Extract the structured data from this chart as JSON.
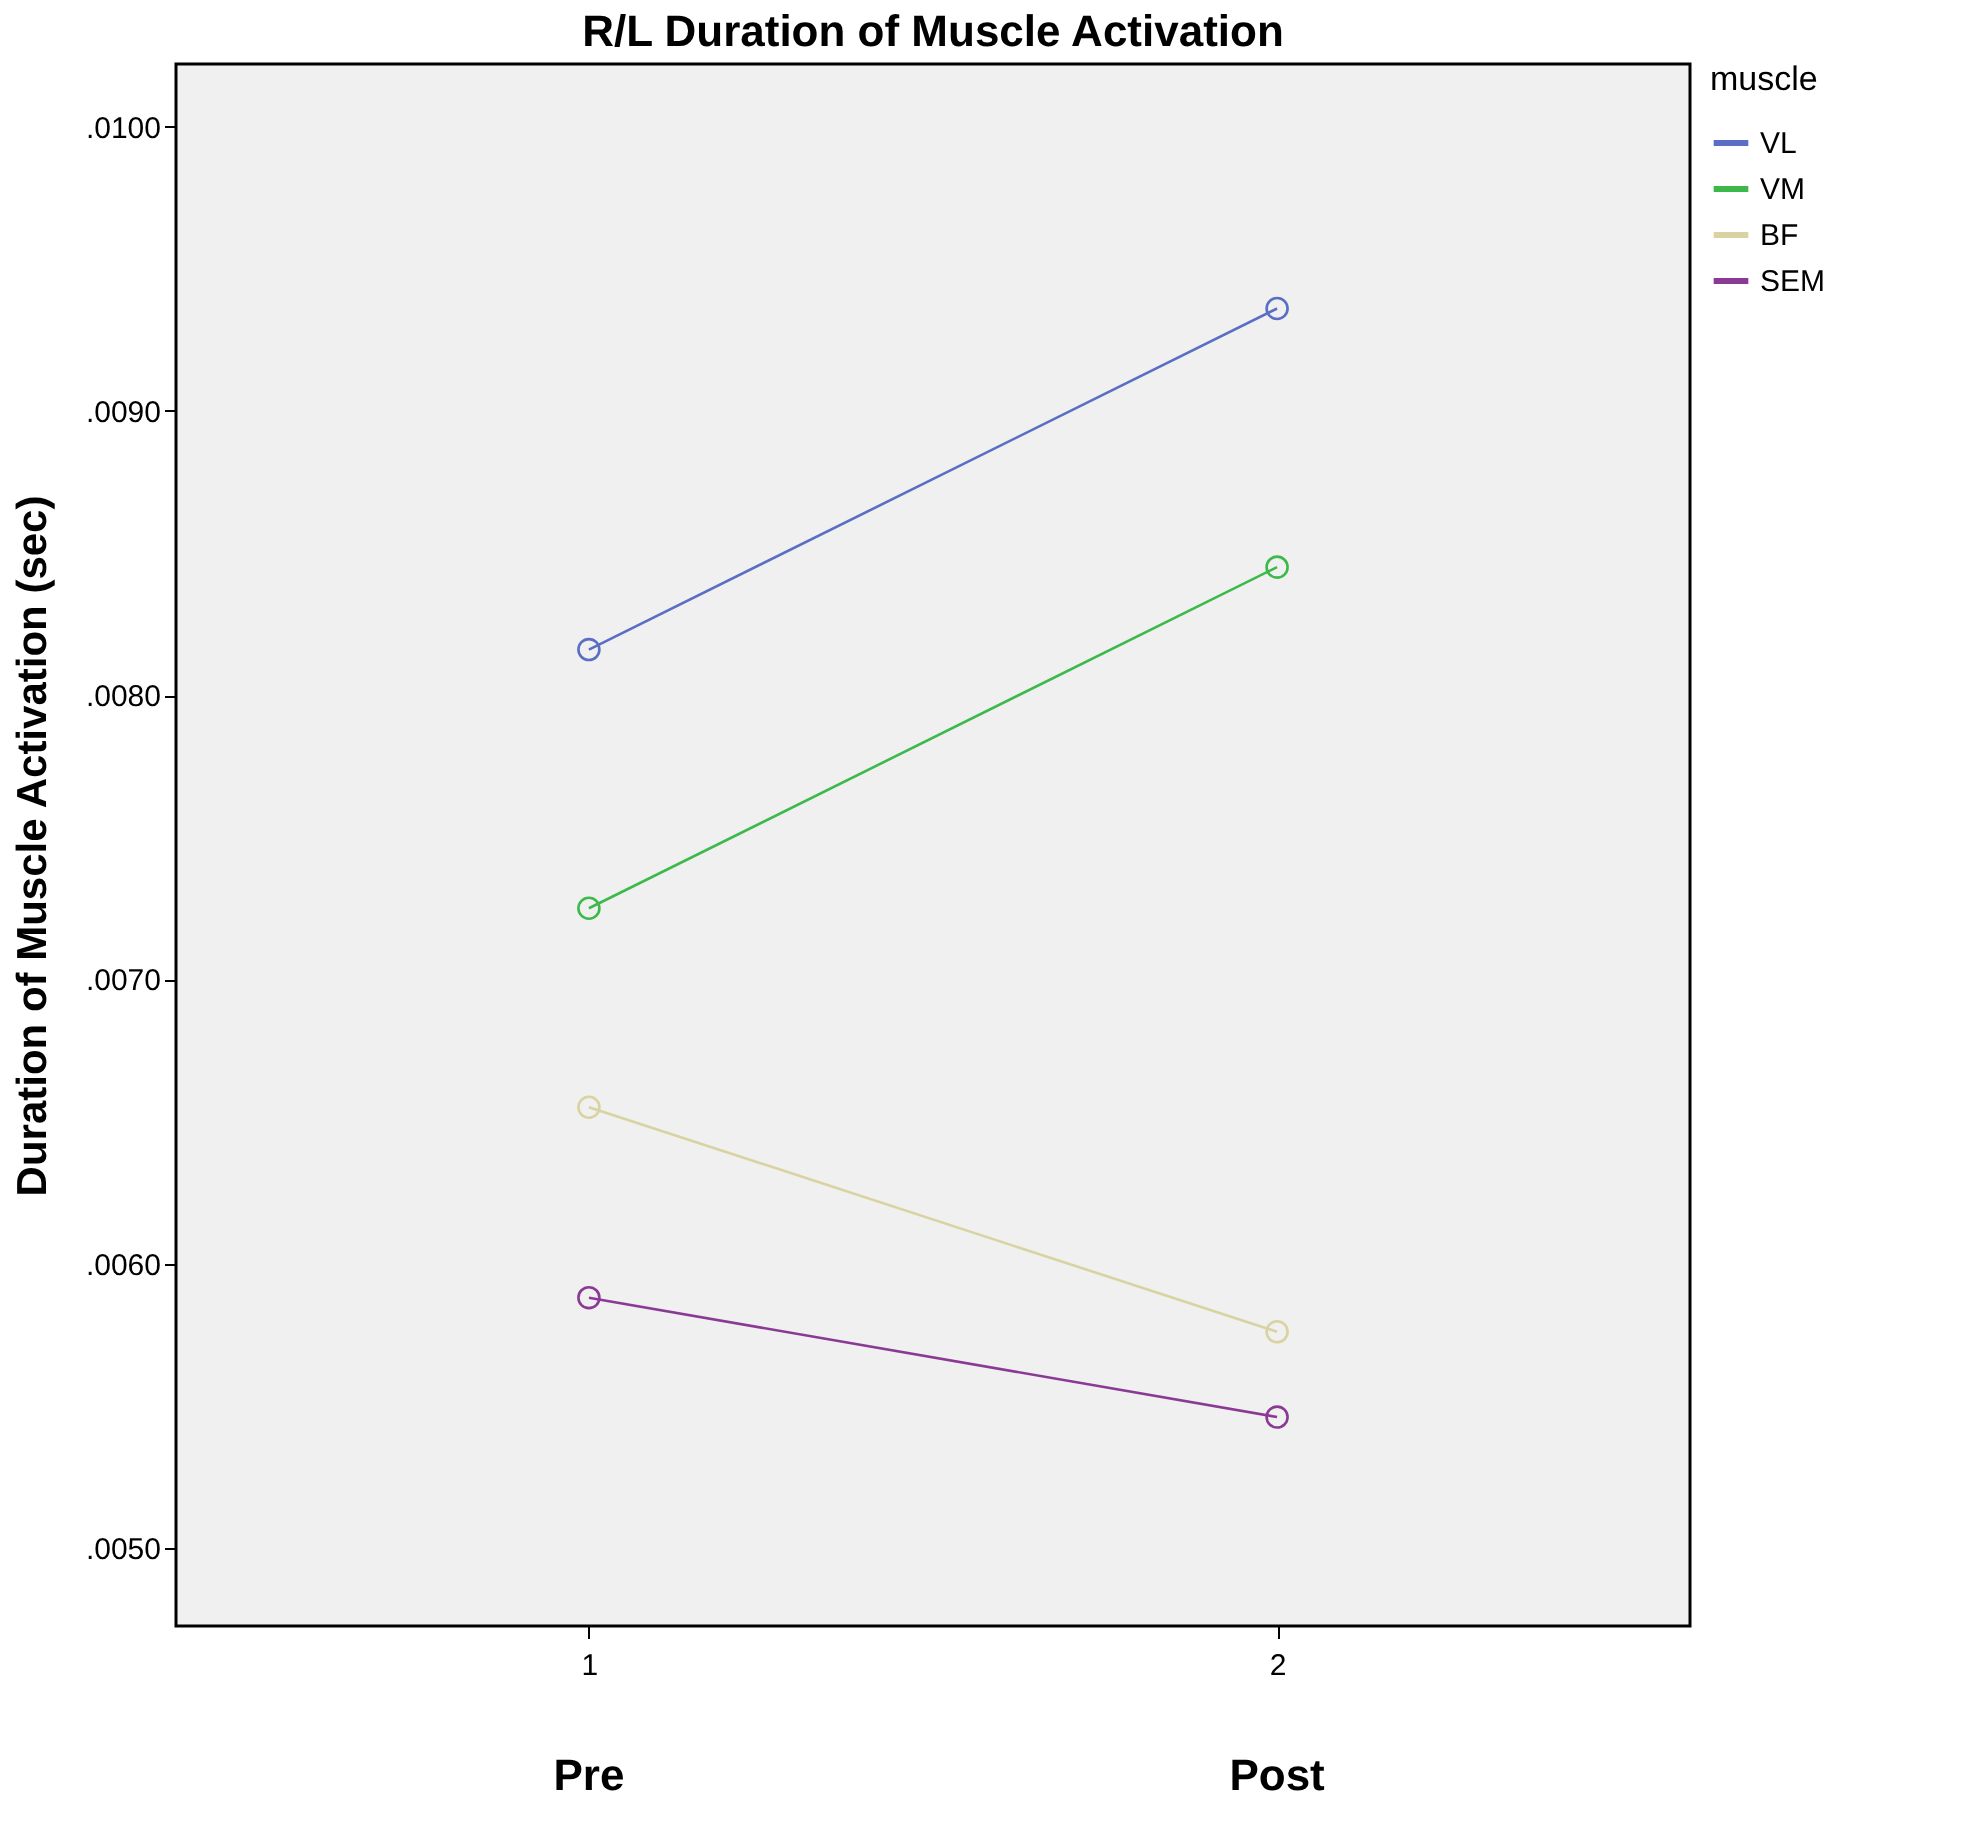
{
  "chart_data": {
    "type": "line",
    "title": "R/L Duration of Muscle Activation",
    "ylabel": "Duration of Muscle Activation (sec)",
    "legend_title": "muscle",
    "legend": "top right",
    "marker": "circle",
    "grid": false,
    "categories": [
      "1",
      "2"
    ],
    "ylim": [
      0.004725,
      0.01022
    ],
    "yticks": [
      {
        "value": 0.005,
        "label": ".0050"
      },
      {
        "value": 0.006,
        "label": ".0060"
      },
      {
        "value": 0.007,
        "label": ".0070"
      },
      {
        "value": 0.008,
        "label": ".0080"
      },
      {
        "value": 0.009,
        "label": ".0090"
      },
      {
        "value": 0.01,
        "label": ".0100"
      }
    ],
    "series": [
      {
        "name": "VL",
        "color": "#5a6fc4",
        "values": [
          0.00816,
          0.00936
        ]
      },
      {
        "name": "VM",
        "color": "#3cb94a",
        "values": [
          0.00725,
          0.00845
        ]
      },
      {
        "name": "BF",
        "color": "#d8d3a0",
        "values": [
          0.00655,
          0.00576
        ]
      },
      {
        "name": "SEM",
        "color": "#8a3a94",
        "values": [
          0.00588,
          0.00546
        ]
      }
    ],
    "annotations": [
      "Pre",
      "Post"
    ]
  }
}
